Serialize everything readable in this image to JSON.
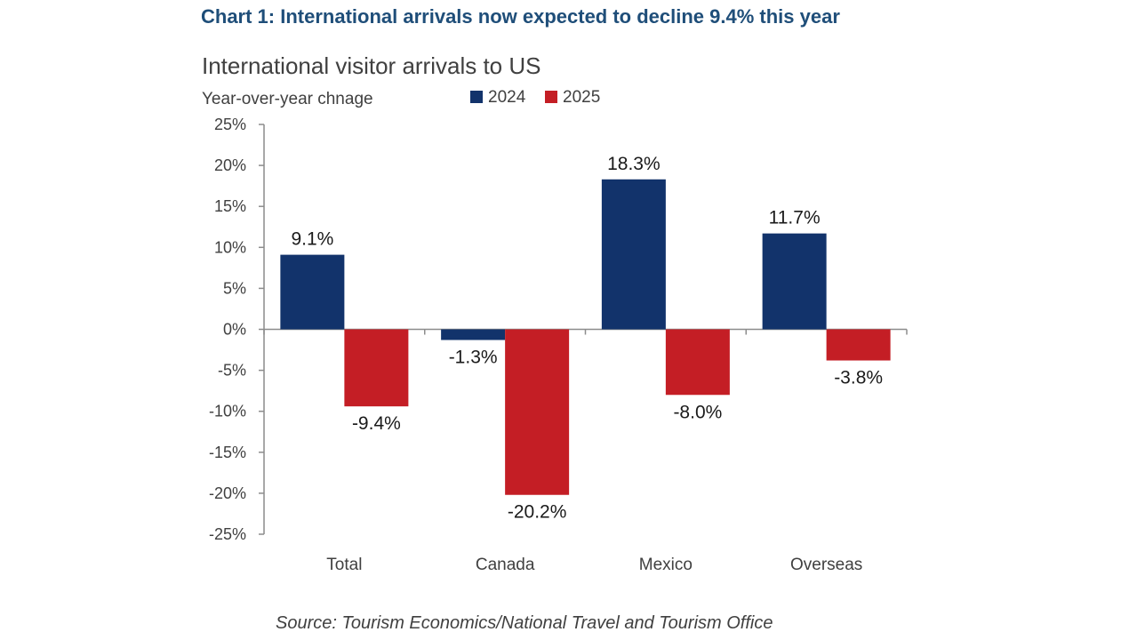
{
  "headline": "Chart 1: International arrivals now expected to decline 9.4% this year",
  "source": "Source: Tourism Economics/National Travel and Tourism Office",
  "chart_data": {
    "type": "bar",
    "title": "International visitor arrivals to US",
    "xlabel": "",
    "ylabel": "Year-over-year chnage",
    "categories": [
      "Total",
      "Canada",
      "Mexico",
      "Overseas"
    ],
    "series": [
      {
        "name": "2024",
        "color": "#12336b",
        "values": [
          9.1,
          -1.3,
          18.3,
          11.7
        ],
        "labels": [
          "9.1%",
          "-1.3%",
          "18.3%",
          "11.7%"
        ]
      },
      {
        "name": "2025",
        "color": "#c41e25",
        "values": [
          -9.4,
          -20.2,
          -8.0,
          -3.8
        ],
        "labels": [
          "-9.4%",
          "-20.2%",
          "-8.0%",
          "-3.8%"
        ]
      }
    ],
    "ylim": [
      -25,
      25
    ],
    "yticks": [
      25,
      20,
      15,
      10,
      5,
      0,
      -5,
      -10,
      -15,
      -20,
      -25
    ],
    "ytick_labels": [
      "25%",
      "20%",
      "15%",
      "10%",
      "5%",
      "0%",
      "-5%",
      "-10%",
      "-15%",
      "-20%",
      "-25%"
    ],
    "grid": false,
    "legend_position": "top-center"
  }
}
